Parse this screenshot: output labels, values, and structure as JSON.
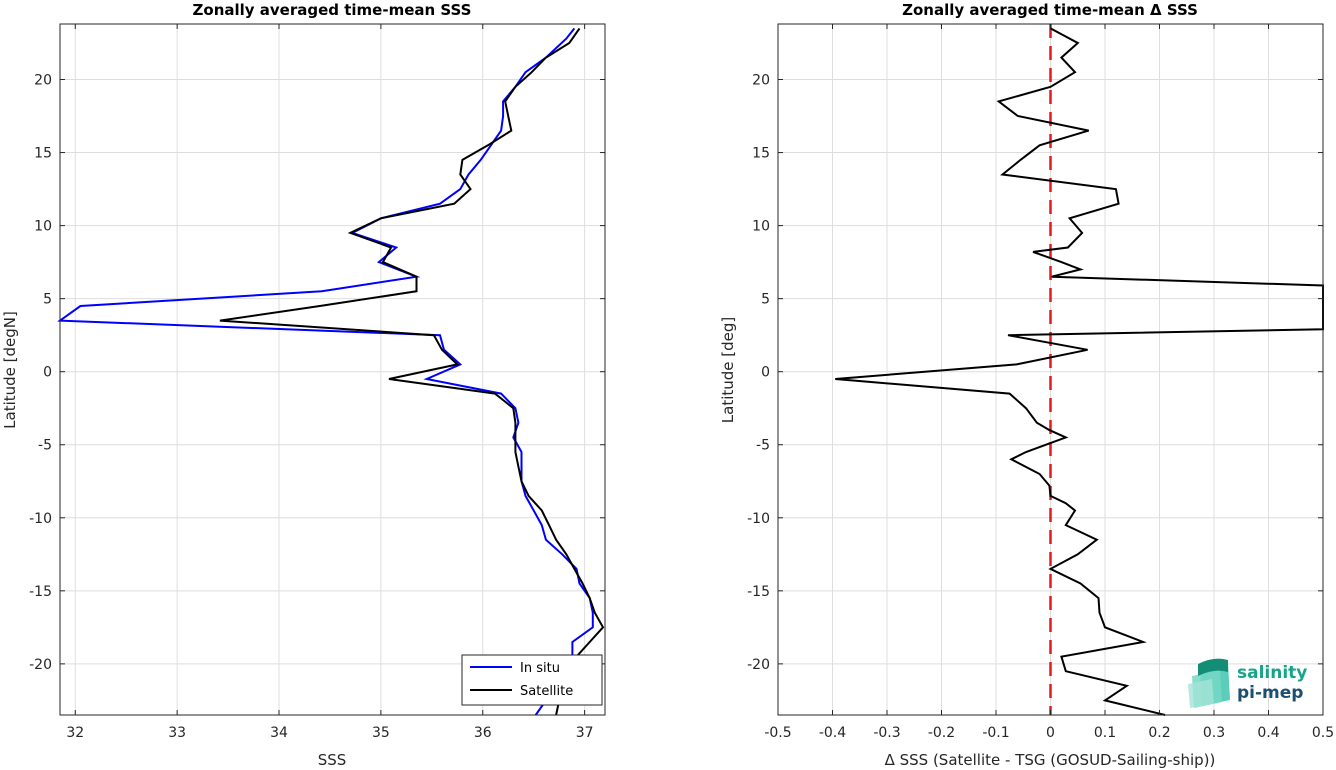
{
  "chart_data": [
    {
      "type": "line",
      "title": "Zonally averaged time-mean SSS",
      "xlabel": "SSS",
      "ylabel": "Latitude [degN]",
      "xlim": [
        31.85,
        37.2
      ],
      "ylim": [
        -23.5,
        23.8
      ],
      "xticks": [
        32,
        33,
        34,
        35,
        36,
        37
      ],
      "yticks": [
        -20,
        -15,
        -10,
        -5,
        0,
        5,
        10,
        15,
        20
      ],
      "grid": true,
      "legend_position": "bottom-right",
      "series": [
        {
          "name": "In situ",
          "color": "#0000ff",
          "points": [
            [
              36.9,
              23.5
            ],
            [
              36.82,
              22.8
            ],
            [
              36.62,
              21.5
            ],
            [
              36.42,
              20.5
            ],
            [
              36.32,
              19.5
            ],
            [
              36.2,
              18.5
            ],
            [
              36.2,
              17.5
            ],
            [
              36.18,
              16.5
            ],
            [
              36.08,
              15.5
            ],
            [
              35.98,
              14.5
            ],
            [
              35.86,
              13.5
            ],
            [
              35.78,
              12.5
            ],
            [
              35.58,
              11.5
            ],
            [
              35.0,
              10.5
            ],
            [
              34.72,
              9.5
            ],
            [
              35.15,
              8.5
            ],
            [
              34.98,
              7.5
            ],
            [
              35.35,
              6.5
            ],
            [
              34.42,
              5.5
            ],
            [
              32.05,
              4.5
            ],
            [
              31.85,
              3.5
            ],
            [
              35.58,
              2.5
            ],
            [
              35.62,
              1.5
            ],
            [
              35.78,
              0.5
            ],
            [
              35.45,
              -0.5
            ],
            [
              36.18,
              -1.5
            ],
            [
              36.32,
              -2.5
            ],
            [
              36.35,
              -3.5
            ],
            [
              36.3,
              -4.5
            ],
            [
              36.38,
              -5.5
            ],
            [
              36.38,
              -6.5
            ],
            [
              36.38,
              -7.5
            ],
            [
              36.42,
              -8.5
            ],
            [
              36.5,
              -9.5
            ],
            [
              36.58,
              -10.5
            ],
            [
              36.62,
              -11.5
            ],
            [
              36.78,
              -12.5
            ],
            [
              36.92,
              -13.5
            ],
            [
              36.95,
              -14.5
            ],
            [
              37.05,
              -15.5
            ],
            [
              37.08,
              -16.5
            ],
            [
              37.08,
              -17.5
            ],
            [
              36.88,
              -18.5
            ],
            [
              36.88,
              -19.5
            ],
            [
              36.78,
              -20.5
            ],
            [
              36.72,
              -21.5
            ],
            [
              36.62,
              -22.5
            ],
            [
              36.52,
              -23.5
            ]
          ]
        },
        {
          "name": "Satellite",
          "color": "#000000",
          "points": [
            [
              36.95,
              23.5
            ],
            [
              36.85,
              22.5
            ],
            [
              36.62,
              21.5
            ],
            [
              36.48,
              20.5
            ],
            [
              36.32,
              19.5
            ],
            [
              36.22,
              18.5
            ],
            [
              36.25,
              17.5
            ],
            [
              36.28,
              16.5
            ],
            [
              36.05,
              15.5
            ],
            [
              35.8,
              14.5
            ],
            [
              35.78,
              13.5
            ],
            [
              35.88,
              12.5
            ],
            [
              35.72,
              11.5
            ],
            [
              35.0,
              10.5
            ],
            [
              34.7,
              9.5
            ],
            [
              35.1,
              8.5
            ],
            [
              35.02,
              7.5
            ],
            [
              35.35,
              6.5
            ],
            [
              35.35,
              5.5
            ],
            [
              34.4,
              4.5
            ],
            [
              33.42,
              3.5
            ],
            [
              35.52,
              2.5
            ],
            [
              35.6,
              1.5
            ],
            [
              35.75,
              0.5
            ],
            [
              35.08,
              -0.5
            ],
            [
              36.12,
              -1.5
            ],
            [
              36.3,
              -2.5
            ],
            [
              36.32,
              -3.5
            ],
            [
              36.32,
              -4.5
            ],
            [
              36.32,
              -5.5
            ],
            [
              36.35,
              -6.5
            ],
            [
              36.38,
              -7.5
            ],
            [
              36.45,
              -8.5
            ],
            [
              36.58,
              -9.5
            ],
            [
              36.65,
              -10.5
            ],
            [
              36.72,
              -11.5
            ],
            [
              36.82,
              -12.5
            ],
            [
              36.9,
              -13.5
            ],
            [
              36.98,
              -14.5
            ],
            [
              37.05,
              -15.5
            ],
            [
              37.1,
              -16.5
            ],
            [
              37.18,
              -17.5
            ],
            [
              37.05,
              -18.5
            ],
            [
              36.92,
              -19.5
            ],
            [
              36.85,
              -20.5
            ],
            [
              36.8,
              -21.5
            ],
            [
              36.75,
              -22.5
            ],
            [
              36.72,
              -23.5
            ]
          ]
        }
      ]
    },
    {
      "type": "line",
      "title": "Zonally averaged time-mean Δ SSS",
      "xlabel": "Δ SSS (Satellite - TSG (GOSUD-Sailing-ship))",
      "ylabel": "Latitude [deg]",
      "xlim": [
        -0.5,
        0.5
      ],
      "ylim": [
        -23.5,
        23.8
      ],
      "xticks": [
        -0.5,
        -0.4,
        -0.3,
        -0.2,
        -0.1,
        0,
        0.1,
        0.2,
        0.3,
        0.4,
        0.5
      ],
      "xticklabels": [
        "-0.5",
        "-0.4",
        "-0.3",
        "-0.2",
        "-0.1",
        "0",
        "0.1",
        "0.2",
        "0.3",
        "0.4",
        "0.5"
      ],
      "yticks": [
        -20,
        -15,
        -10,
        -5,
        0,
        5,
        10,
        15,
        20
      ],
      "grid": true,
      "reference_line": {
        "x": 0,
        "color": "#e41a1c",
        "style": "dashed"
      },
      "series": [
        {
          "color": "#000000",
          "points": [
            [
              0.0,
              23.5
            ],
            [
              0.05,
              22.5
            ],
            [
              0.02,
              21.5
            ],
            [
              0.045,
              20.5
            ],
            [
              0.0,
              19.5
            ],
            [
              -0.095,
              18.5
            ],
            [
              -0.06,
              17.5
            ],
            [
              0.07,
              16.5
            ],
            [
              -0.02,
              15.5
            ],
            [
              -0.055,
              14.5
            ],
            [
              -0.088,
              13.5
            ],
            [
              0.12,
              12.5
            ],
            [
              0.125,
              11.5
            ],
            [
              0.035,
              10.5
            ],
            [
              0.058,
              9.5
            ],
            [
              0.032,
              8.5
            ],
            [
              -0.032,
              8.2
            ],
            [
              0.02,
              7.5
            ],
            [
              0.055,
              7.0
            ],
            [
              0.002,
              6.5
            ],
            [
              0.5,
              5.9
            ],
            [
              0.5,
              2.9
            ],
            [
              -0.078,
              2.5
            ],
            [
              0.068,
              1.5
            ],
            [
              -0.062,
              0.5
            ],
            [
              -0.395,
              -0.5
            ],
            [
              -0.075,
              -1.5
            ],
            [
              -0.045,
              -2.5
            ],
            [
              -0.025,
              -3.5
            ],
            [
              -0.002,
              -4.0
            ],
            [
              0.028,
              -4.5
            ],
            [
              -0.045,
              -5.5
            ],
            [
              -0.072,
              -6.0
            ],
            [
              -0.02,
              -7.0
            ],
            [
              -0.002,
              -7.8
            ],
            [
              0.0,
              -8.5
            ],
            [
              0.028,
              -9.0
            ],
            [
              0.045,
              -9.5
            ],
            [
              0.028,
              -10.5
            ],
            [
              0.085,
              -11.5
            ],
            [
              0.05,
              -12.5
            ],
            [
              0.0,
              -13.5
            ],
            [
              0.055,
              -14.5
            ],
            [
              0.088,
              -15.5
            ],
            [
              0.09,
              -16.5
            ],
            [
              0.1,
              -17.5
            ],
            [
              0.17,
              -18.5
            ],
            [
              0.02,
              -19.5
            ],
            [
              0.028,
              -20.5
            ],
            [
              0.14,
              -21.5
            ],
            [
              0.1,
              -22.5
            ],
            [
              0.21,
              -23.5
            ]
          ]
        }
      ]
    }
  ],
  "logo": {
    "line1": "salinity",
    "line2": "pi-mep"
  }
}
